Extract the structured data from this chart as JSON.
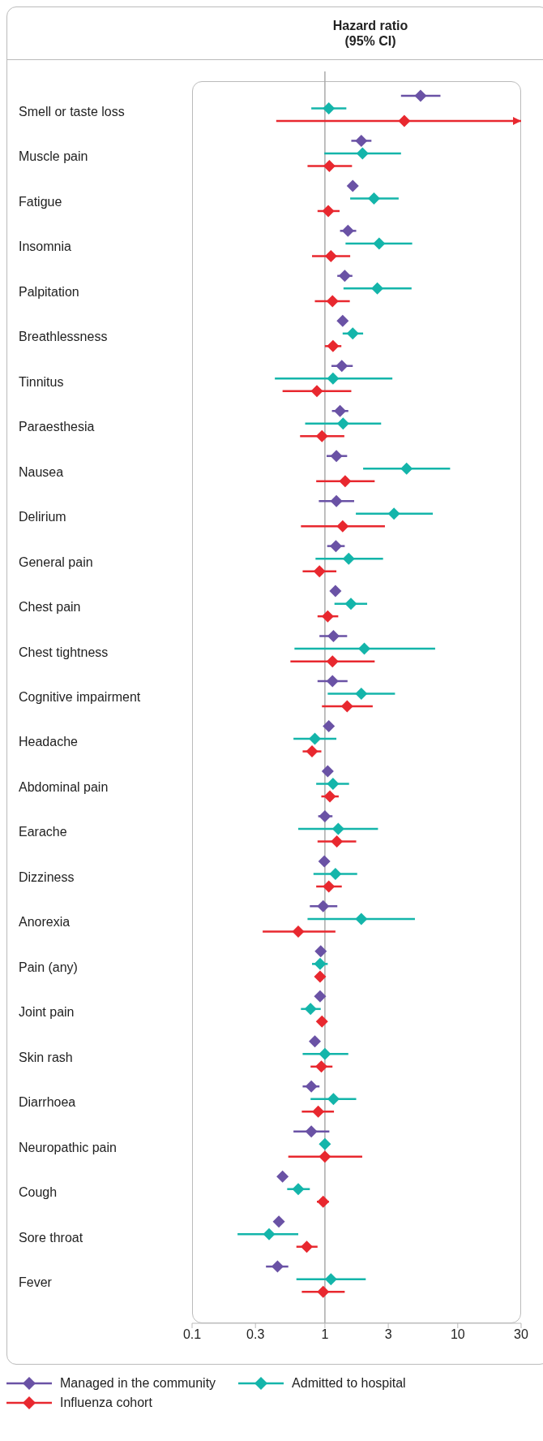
{
  "chart_data": {
    "type": "scatter",
    "title": "Hazard ratio (95% CI)",
    "marker": "diamond",
    "orientation": "horizontal",
    "log": "x",
    "legend": "bottom left",
    "xlim": [
      0.1,
      30
    ],
    "xticks": [
      0.1,
      0.3,
      1,
      3,
      10,
      30
    ],
    "ref_lines": [
      {
        "axis": "x",
        "value": 1,
        "color": "#aaaaaa"
      }
    ],
    "categories": [
      "Smell or taste loss",
      "Muscle pain",
      "Fatigue",
      "Insomnia",
      "Palpitation",
      "Breathlessness",
      "Tinnitus",
      "Paraesthesia",
      "Nausea",
      "Delirium",
      "General pain",
      "Chest pain",
      "Chest tightness",
      "Cognitive impairment",
      "Headache",
      "Abdominal pain",
      "Earache",
      "Dizziness",
      "Anorexia",
      "Pain (any)",
      "Joint pain",
      "Skin rash",
      "Diarrhoea",
      "Neuropathic pain",
      "Cough",
      "Sore throat",
      "Fever"
    ],
    "series": [
      {
        "name": "Managed in the community",
        "color": "#6a52a5",
        "values": [
          5.25,
          1.88,
          1.62,
          1.49,
          1.41,
          1.36,
          1.34,
          1.3,
          1.22,
          1.22,
          1.21,
          1.2,
          1.16,
          1.14,
          1.07,
          1.05,
          1.0,
          0.99,
          0.97,
          0.93,
          0.92,
          0.84,
          0.79,
          0.79,
          0.48,
          0.45,
          0.44
        ],
        "errors": [
          [
            3.74,
            7.41
          ],
          [
            1.58,
            2.24
          ],
          null,
          [
            1.3,
            1.72
          ],
          [
            1.24,
            1.61
          ],
          null,
          [
            1.12,
            1.62
          ],
          [
            1.13,
            1.5
          ],
          [
            1.03,
            1.47
          ],
          [
            0.9,
            1.66
          ],
          [
            1.04,
            1.41
          ],
          null,
          [
            0.91,
            1.47
          ],
          [
            0.88,
            1.48
          ],
          null,
          null,
          [
            0.89,
            1.14
          ],
          null,
          [
            0.77,
            1.24
          ],
          null,
          null,
          null,
          [
            0.68,
            0.91
          ],
          [
            0.58,
            1.08
          ],
          null,
          null,
          [
            0.36,
            0.53
          ]
        ]
      },
      {
        "name": "Admitted to hospital",
        "color": "#14b5aa",
        "values": [
          1.07,
          1.92,
          2.34,
          2.56,
          2.48,
          1.62,
          1.15,
          1.37,
          4.12,
          3.31,
          1.51,
          1.57,
          1.98,
          1.88,
          0.84,
          1.15,
          1.26,
          1.2,
          1.88,
          0.92,
          0.78,
          1.0,
          1.16,
          1.0,
          0.63,
          0.38,
          1.11
        ],
        "errors": [
          [
            0.79,
            1.45
          ],
          [
            0.99,
            3.74
          ],
          [
            1.55,
            3.59
          ],
          [
            1.43,
            4.54
          ],
          [
            1.38,
            4.49
          ],
          [
            1.36,
            1.94
          ],
          [
            0.42,
            3.22
          ],
          [
            0.71,
            2.65
          ],
          [
            1.94,
            8.76
          ],
          [
            1.71,
            6.49
          ],
          [
            0.85,
            2.74
          ],
          [
            1.18,
            2.08
          ],
          [
            0.59,
            6.76
          ],
          [
            1.05,
            3.37
          ],
          [
            0.58,
            1.22
          ],
          [
            0.86,
            1.52
          ],
          [
            0.63,
            2.51
          ],
          [
            0.82,
            1.75
          ],
          [
            0.74,
            4.76
          ],
          [
            0.8,
            1.05
          ],
          [
            0.66,
            0.93
          ],
          [
            0.68,
            1.5
          ],
          [
            0.78,
            1.72
          ],
          null,
          [
            0.52,
            0.77
          ],
          [
            0.22,
            0.63
          ],
          [
            0.61,
            2.03
          ]
        ]
      },
      {
        "name": "Influenza cohort",
        "color": "#e8282f",
        "values": [
          3.96,
          1.08,
          1.06,
          1.11,
          1.14,
          1.15,
          0.87,
          0.95,
          1.42,
          1.36,
          0.91,
          1.05,
          1.14,
          1.47,
          0.8,
          1.09,
          1.23,
          1.07,
          0.63,
          0.92,
          0.95,
          0.94,
          0.89,
          1.0,
          0.97,
          0.73,
          0.97
        ],
        "errors": [
          [
            0.43,
            30
          ],
          [
            0.74,
            1.6
          ],
          [
            0.88,
            1.29
          ],
          [
            0.8,
            1.55
          ],
          [
            0.84,
            1.54
          ],
          [
            1.0,
            1.33
          ],
          [
            0.48,
            1.58
          ],
          [
            0.65,
            1.4
          ],
          [
            0.86,
            2.37
          ],
          [
            0.66,
            2.83
          ],
          [
            0.68,
            1.22
          ],
          [
            0.88,
            1.26
          ],
          [
            0.55,
            2.37
          ],
          [
            0.95,
            2.29
          ],
          [
            0.68,
            0.94
          ],
          [
            0.94,
            1.27
          ],
          [
            0.88,
            1.72
          ],
          [
            0.86,
            1.34
          ],
          [
            0.34,
            1.2
          ],
          null,
          null,
          [
            0.78,
            1.14
          ],
          [
            0.67,
            1.17
          ],
          [
            0.53,
            1.91
          ],
          [
            0.87,
            1.07
          ],
          [
            0.61,
            0.88
          ],
          [
            0.67,
            1.41
          ]
        ]
      }
    ]
  }
}
